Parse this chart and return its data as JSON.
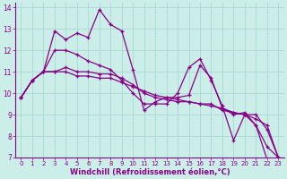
{
  "background_color": "#cceee8",
  "grid_color": "#aad8d2",
  "line_color": "#880088",
  "tick_color": "#880088",
  "xlabel": "Windchill (Refroidissement éolien,°C)",
  "xlim": [
    -0.5,
    23.5
  ],
  "ylim": [
    7,
    14.2
  ],
  "yticks": [
    7,
    8,
    9,
    10,
    11,
    12,
    13,
    14
  ],
  "xticks": [
    0,
    1,
    2,
    3,
    4,
    5,
    6,
    7,
    8,
    9,
    10,
    11,
    12,
    13,
    14,
    15,
    16,
    17,
    18,
    19,
    20,
    21,
    22,
    23
  ],
  "series": [
    {
      "x": [
        0,
        1,
        2,
        3,
        4,
        5,
        6,
        7,
        8,
        9,
        10,
        11,
        12,
        13,
        14,
        15,
        16,
        17,
        18,
        19,
        20,
        21,
        22,
        23
      ],
      "y": [
        9.8,
        10.6,
        11.0,
        12.9,
        12.5,
        12.8,
        12.6,
        13.9,
        13.2,
        12.9,
        11.1,
        9.2,
        9.6,
        9.8,
        9.8,
        9.9,
        11.3,
        10.7,
        9.3,
        9.0,
        9.1,
        8.5,
        6.9,
        7.0
      ]
    },
    {
      "x": [
        0,
        1,
        2,
        3,
        4,
        5,
        6,
        7,
        8,
        9,
        10,
        11,
        12,
        13,
        14,
        15,
        16,
        17,
        18,
        19,
        20,
        21,
        22,
        23
      ],
      "y": [
        9.8,
        10.6,
        11.0,
        11.0,
        11.0,
        10.8,
        10.8,
        10.7,
        10.7,
        10.5,
        10.3,
        10.1,
        9.9,
        9.8,
        9.7,
        9.6,
        9.5,
        9.4,
        9.3,
        9.1,
        9.0,
        8.8,
        8.5,
        7.0
      ]
    },
    {
      "x": [
        0,
        1,
        2,
        3,
        4,
        5,
        6,
        7,
        8,
        9,
        10,
        11,
        12,
        13,
        14,
        15,
        16,
        17,
        18,
        19,
        20,
        21,
        22,
        23
      ],
      "y": [
        9.8,
        10.6,
        11.0,
        11.0,
        11.2,
        11.0,
        11.0,
        10.9,
        10.9,
        10.7,
        10.4,
        10.0,
        9.8,
        9.7,
        9.6,
        9.6,
        9.5,
        9.5,
        9.2,
        9.1,
        9.0,
        8.5,
        7.5,
        7.0
      ]
    },
    {
      "x": [
        0,
        1,
        2,
        3,
        4,
        5,
        6,
        7,
        8,
        9,
        10,
        11,
        12,
        13,
        14,
        15,
        16,
        17,
        18,
        19,
        20,
        21,
        22,
        23
      ],
      "y": [
        9.8,
        10.6,
        11.0,
        12.0,
        12.0,
        11.8,
        11.5,
        11.3,
        11.1,
        10.6,
        10.0,
        9.5,
        9.5,
        9.5,
        10.0,
        11.2,
        11.6,
        10.6,
        9.4,
        7.8,
        9.0,
        9.0,
        8.3,
        7.0
      ]
    }
  ]
}
